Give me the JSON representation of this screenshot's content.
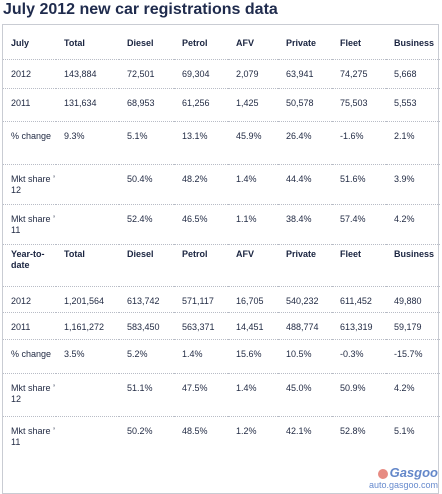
{
  "title": "July 2012 new car registrations data",
  "section1": {
    "headers": [
      "July",
      "Total",
      "Diesel",
      "Petrol",
      "AFV",
      "Private",
      "Fleet",
      "Business"
    ],
    "rows": [
      [
        "2012",
        "143,884",
        "72,501",
        "69,304",
        "2,079",
        "63,941",
        "74,275",
        "5,668"
      ],
      [
        "2011",
        "131,634",
        "68,953",
        "61,256",
        "1,425",
        "50,578",
        "75,503",
        "5,553"
      ],
      [
        "% change",
        "9.3%",
        "5.1%",
        "13.1%",
        "45.9%",
        "26.4%",
        "-1.6%",
        "2.1%"
      ],
      [
        "Mkt share ’ 12",
        "",
        "50.4%",
        "48.2%",
        "1.4%",
        "44.4%",
        "51.6%",
        "3.9%"
      ],
      [
        "Mkt share ’ 11",
        "",
        "52.4%",
        "46.5%",
        "1.1%",
        "38.4%",
        "57.4%",
        "4.2%"
      ]
    ]
  },
  "section2": {
    "headers": [
      "Year-to-date",
      "Total",
      "Diesel",
      "Petrol",
      "AFV",
      "Private",
      "Fleet",
      "Business"
    ],
    "rows": [
      [
        "2012",
        "1,201,564",
        "613,742",
        "571,117",
        "16,705",
        "540,232",
        "611,452",
        "49,880"
      ],
      [
        "2011",
        "1,161,272",
        "583,450",
        "563,371",
        "14,451",
        "488,774",
        "613,319",
        "59,179"
      ],
      [
        "% change",
        "3.5%",
        "5.2%",
        "1.4%",
        "15.6%",
        "10.5%",
        "-0.3%",
        "-15.7%"
      ],
      [
        "Mkt share ’ 12",
        "",
        "51.1%",
        "47.5%",
        "1.4%",
        "45.0%",
        "50.9%",
        "4.2%"
      ],
      [
        "Mkt share ’ 11",
        "",
        "50.2%",
        "48.5%",
        "1.2%",
        "42.1%",
        "52.8%",
        "5.1%"
      ]
    ]
  },
  "watermark": {
    "logo": "Gasgoo",
    "url": "auto.gasgoo.com"
  }
}
